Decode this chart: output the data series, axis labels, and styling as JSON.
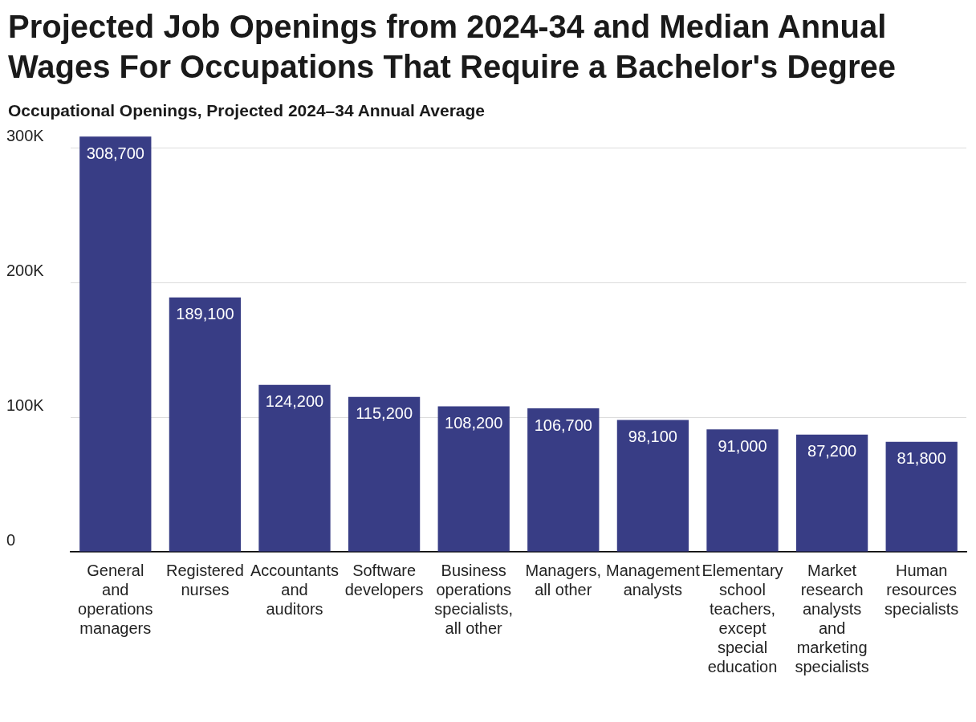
{
  "chart_data": {
    "type": "bar",
    "title": "Projected Job Openings from 2024-34 and Median Annual Wages For Occupations That Require a Bachelor's Degree",
    "ylabel": "Occupational Openings, Projected 2024–34 Annual Average",
    "categories": [
      "General and operations managers",
      "Registered nurses",
      "Accountants and auditors",
      "Software developers",
      "Business operations specialists, all other",
      "Managers, all other",
      "Management analysts",
      "Elementary school teachers, except special education",
      "Market research analysts and marketing specialists",
      "Human resources specialists"
    ],
    "values": [
      308700,
      189100,
      124200,
      115200,
      108200,
      106700,
      98100,
      91000,
      87200,
      81800
    ],
    "color": "#383d85",
    "ylim": [
      0,
      310000
    ],
    "yticks": [
      {
        "value": 0,
        "label": "0"
      },
      {
        "value": 100000,
        "label": "100K"
      },
      {
        "value": 200000,
        "label": "200K"
      },
      {
        "value": 300000,
        "label": "300K"
      }
    ],
    "value_labels": [
      "308,700",
      "189,100",
      "124,200",
      "115,200",
      "108,200",
      "106,700",
      "98,100",
      "91,000",
      "87,200",
      "81,800"
    ],
    "grid": "y",
    "legend": false
  }
}
